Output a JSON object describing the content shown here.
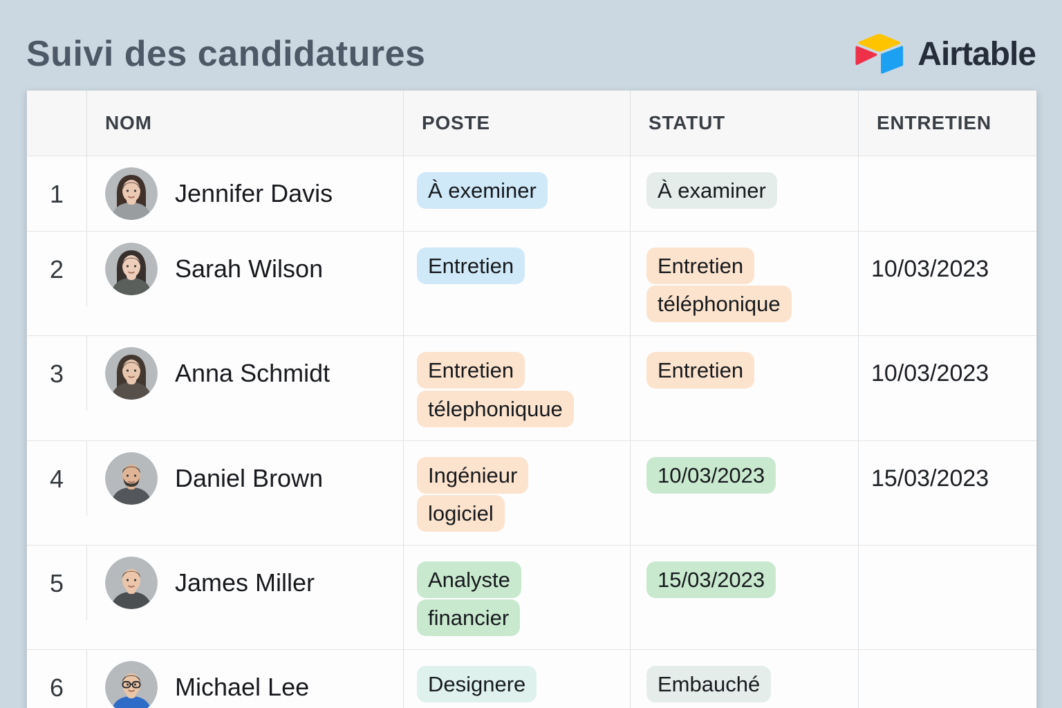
{
  "header": {
    "title": "Suivi des candidatures"
  },
  "brand": {
    "name": "Airtable",
    "colors": {
      "yellow": "#ffc400",
      "red": "#ee3049",
      "blue": "#1ca0f2"
    }
  },
  "badge_colors": {
    "blue": "#d0e9f8",
    "peach": "#fce3cd",
    "green": "#c9e9cf",
    "mint": "#e5edea",
    "teal": "#def1ed"
  },
  "table": {
    "columns": [
      {
        "key": "nom",
        "label": "NOM"
      },
      {
        "key": "poste",
        "label": "POSTE"
      },
      {
        "key": "statut",
        "label": "STATUT"
      },
      {
        "key": "entretien",
        "label": "ENTRETIEN"
      }
    ],
    "rows": [
      {
        "num": "1",
        "name": "Jennifer Davis",
        "avatar": {
          "desc": "woman-long-dark-hair",
          "style": "long",
          "hair": "#40312b",
          "skin": "#ecc9b3",
          "shirt": "#9a9da0"
        },
        "poste": {
          "text": "À exeminer",
          "color": "blue"
        },
        "statut": {
          "text": "À examiner",
          "color": "mint"
        },
        "entretien": ""
      },
      {
        "num": "2",
        "name": "Sarah Wilson",
        "avatar": {
          "desc": "woman-dark-hair-pulled-back",
          "style": "long",
          "hair": "#38302c",
          "skin": "#eeceba",
          "shirt": "#5a5f5b"
        },
        "poste": {
          "text": "Entretien",
          "color": "blue"
        },
        "statut": {
          "text": "Entretien téléphonique",
          "color": "peach"
        },
        "entretien": "10/03/2023"
      },
      {
        "num": "3",
        "name": "Anna Schmidt",
        "avatar": {
          "desc": "woman-long-brown-hair",
          "style": "long",
          "hair": "#423830",
          "skin": "#e9c7af",
          "shirt": "#57504a"
        },
        "poste": {
          "text": "Entretien télephoniquue",
          "color": "peach"
        },
        "statut": {
          "text": "Entretien",
          "color": "peach"
        },
        "entretien": "10/03/2023"
      },
      {
        "num": "4",
        "name": "Daniel Brown",
        "avatar": {
          "desc": "man-short-hair-beard",
          "style": "short",
          "beard": true,
          "hair": "#2e2b29",
          "skin": "#e0b595",
          "shirt": "#53565a"
        },
        "poste": {
          "text": "Ingénieur logiciel",
          "color": "peach"
        },
        "statut": {
          "text": "10/03/2023",
          "color": "green"
        },
        "entretien": "15/03/2023"
      },
      {
        "num": "5",
        "name": "James Miller",
        "avatar": {
          "desc": "man-short-brown-hair",
          "style": "short",
          "hair": "#54422f",
          "skin": "#ecc6aa",
          "shirt": "#4c4f52"
        },
        "poste": {
          "text": "Analyste financier",
          "color": "green"
        },
        "statut": {
          "text": "15/03/2023",
          "color": "green"
        },
        "entretien": ""
      },
      {
        "num": "6",
        "name": "Michael Lee",
        "avatar": {
          "desc": "man-glasses-blue-shirt",
          "style": "short",
          "glasses": true,
          "hair": "#242122",
          "skin": "#eac5a6",
          "shirt": "#2e6cc7"
        },
        "poste": {
          "text": "Designere",
          "color": "teal"
        },
        "statut": {
          "text": "Embauché",
          "color": "mint"
        },
        "entretien": ""
      }
    ]
  }
}
